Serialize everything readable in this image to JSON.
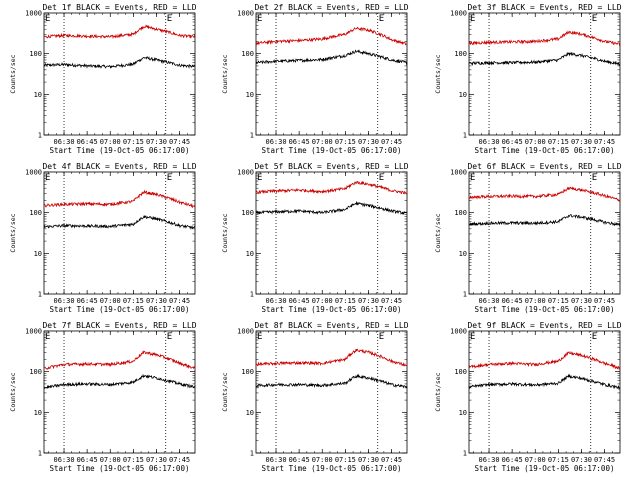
{
  "chart_data": {
    "type": "line",
    "layout": "3x3 grid",
    "panels": [
      {
        "title": "Det 1f BLACK = Events, RED = LLD",
        "series": [
          {
            "color": "#000000",
            "x": [
              "06:17",
              "06:30",
              "06:45",
              "07:00",
              "07:15",
              "07:22",
              "07:30",
              "07:45",
              "07:55"
            ],
            "y": [
              52,
              54,
              50,
              48,
              55,
              80,
              70,
              52,
              48
            ]
          },
          {
            "color": "#cc0000",
            "x": [
              "06:17",
              "06:30",
              "06:45",
              "07:00",
              "07:15",
              "07:22",
              "07:30",
              "07:45",
              "07:55"
            ],
            "y": [
              260,
              280,
              270,
              260,
              300,
              470,
              400,
              280,
              260
            ]
          }
        ]
      },
      {
        "title": "Det 2f BLACK = Events, RED = LLD",
        "series": [
          {
            "color": "#000000",
            "x": [
              "06:17",
              "06:30",
              "06:45",
              "07:00",
              "07:15",
              "07:22",
              "07:30",
              "07:45",
              "07:55"
            ],
            "y": [
              60,
              65,
              68,
              72,
              90,
              115,
              100,
              70,
              60
            ]
          },
          {
            "color": "#cc0000",
            "x": [
              "06:17",
              "06:30",
              "06:45",
              "07:00",
              "07:15",
              "07:22",
              "07:30",
              "07:45",
              "07:55"
            ],
            "y": [
              180,
              200,
              210,
              230,
              300,
              420,
              380,
              220,
              170
            ]
          }
        ]
      },
      {
        "title": "Det 3f BLACK = Events, RED = LLD",
        "series": [
          {
            "color": "#000000",
            "x": [
              "06:17",
              "06:30",
              "06:45",
              "07:00",
              "07:15",
              "07:22",
              "07:30",
              "07:45",
              "07:55"
            ],
            "y": [
              58,
              60,
              60,
              62,
              70,
              100,
              90,
              65,
              55
            ]
          },
          {
            "color": "#cc0000",
            "x": [
              "06:17",
              "06:30",
              "06:45",
              "07:00",
              "07:15",
              "07:22",
              "07:30",
              "07:45",
              "07:55"
            ],
            "y": [
              180,
              190,
              195,
              200,
              230,
              340,
              300,
              200,
              170
            ]
          }
        ]
      },
      {
        "title": "Det 4f BLACK = Events, RED = LLD",
        "series": [
          {
            "color": "#000000",
            "x": [
              "06:17",
              "06:30",
              "06:45",
              "07:00",
              "07:15",
              "07:22",
              "07:30",
              "07:45",
              "07:55"
            ],
            "y": [
              45,
              48,
              47,
              46,
              52,
              80,
              70,
              48,
              42
            ]
          },
          {
            "color": "#cc0000",
            "x": [
              "06:17",
              "06:30",
              "06:45",
              "07:00",
              "07:15",
              "07:22",
              "07:30",
              "07:45",
              "07:55"
            ],
            "y": [
              150,
              160,
              165,
              160,
              190,
              320,
              280,
              180,
              140
            ]
          }
        ]
      },
      {
        "title": "Det 5f BLACK = Events, RED = LLD",
        "series": [
          {
            "color": "#000000",
            "x": [
              "06:17",
              "06:30",
              "06:45",
              "07:00",
              "07:15",
              "07:22",
              "07:30",
              "07:45",
              "07:55"
            ],
            "y": [
              100,
              105,
              110,
              100,
              120,
              170,
              150,
              110,
              95
            ]
          },
          {
            "color": "#cc0000",
            "x": [
              "06:17",
              "06:30",
              "06:45",
              "07:00",
              "07:15",
              "07:22",
              "07:30",
              "07:45",
              "07:55"
            ],
            "y": [
              320,
              340,
              360,
              330,
              390,
              560,
              500,
              350,
              300
            ]
          }
        ]
      },
      {
        "title": "Det 6f BLACK = Events, RED = LLD",
        "series": [
          {
            "color": "#000000",
            "x": [
              "06:17",
              "06:30",
              "06:45",
              "07:00",
              "07:15",
              "07:22",
              "07:30",
              "07:45",
              "07:55"
            ],
            "y": [
              52,
              55,
              56,
              55,
              60,
              85,
              78,
              58,
              50
            ]
          },
          {
            "color": "#cc0000",
            "x": [
              "06:17",
              "06:30",
              "06:45",
              "07:00",
              "07:15",
              "07:22",
              "07:30",
              "07:45",
              "07:55"
            ],
            "y": [
              240,
              250,
              255,
              250,
              280,
              400,
              360,
              260,
              200
            ]
          }
        ]
      },
      {
        "title": "Det 7f BLACK = Events, RED = LLD",
        "series": [
          {
            "color": "#000000",
            "x": [
              "06:17",
              "06:30",
              "06:45",
              "07:00",
              "07:15",
              "07:22",
              "07:30",
              "07:45",
              "07:55"
            ],
            "y": [
              40,
              48,
              50,
              48,
              55,
              80,
              70,
              50,
              42
            ]
          },
          {
            "color": "#cc0000",
            "x": [
              "06:17",
              "06:30",
              "06:45",
              "07:00",
              "07:15",
              "07:22",
              "07:30",
              "07:45",
              "07:55"
            ],
            "y": [
              120,
              150,
              155,
              150,
              180,
              300,
              260,
              160,
              120
            ]
          }
        ]
      },
      {
        "title": "Det 8f BLACK = Events, RED = LLD",
        "series": [
          {
            "color": "#000000",
            "x": [
              "06:17",
              "06:30",
              "06:45",
              "07:00",
              "07:15",
              "07:22",
              "07:30",
              "07:45",
              "07:55"
            ],
            "y": [
              45,
              48,
              48,
              46,
              52,
              78,
              70,
              48,
              42
            ]
          },
          {
            "color": "#cc0000",
            "x": [
              "06:17",
              "06:30",
              "06:45",
              "07:00",
              "07:15",
              "07:22",
              "07:30",
              "07:45",
              "07:55"
            ],
            "y": [
              150,
              160,
              165,
              160,
              200,
              340,
              300,
              180,
              140
            ]
          }
        ]
      },
      {
        "title": "Det 9f BLACK = Events, RED = LLD",
        "series": [
          {
            "color": "#000000",
            "x": [
              "06:17",
              "06:30",
              "06:45",
              "07:00",
              "07:15",
              "07:22",
              "07:30",
              "07:45",
              "07:55"
            ],
            "y": [
              42,
              48,
              50,
              47,
              52,
              78,
              68,
              48,
              40
            ]
          },
          {
            "color": "#cc0000",
            "x": [
              "06:17",
              "06:30",
              "06:45",
              "07:00",
              "07:15",
              "07:22",
              "07:30",
              "07:45",
              "07:55"
            ],
            "y": [
              130,
              150,
              160,
              150,
              180,
              290,
              250,
              160,
              120
            ]
          }
        ]
      }
    ],
    "xlabel": "Start Time (19-Oct-05 06:17:00)",
    "ylabel": "Counts/sec",
    "xticks": [
      "06:30",
      "06:45",
      "07:00",
      "07:15",
      "07:30",
      "07:45"
    ],
    "xlim": [
      "06:17",
      "07:55"
    ],
    "yscale": "log",
    "ylim": [
      1,
      1000
    ],
    "yticks": [
      "1",
      "10",
      "100",
      "1000"
    ],
    "vlines": [
      "06:30",
      "07:36"
    ],
    "markers": [
      {
        "text": "E",
        "x": "06:17"
      },
      {
        "text": "E",
        "x": "07:36"
      }
    ],
    "grid": false,
    "legend": "none"
  }
}
